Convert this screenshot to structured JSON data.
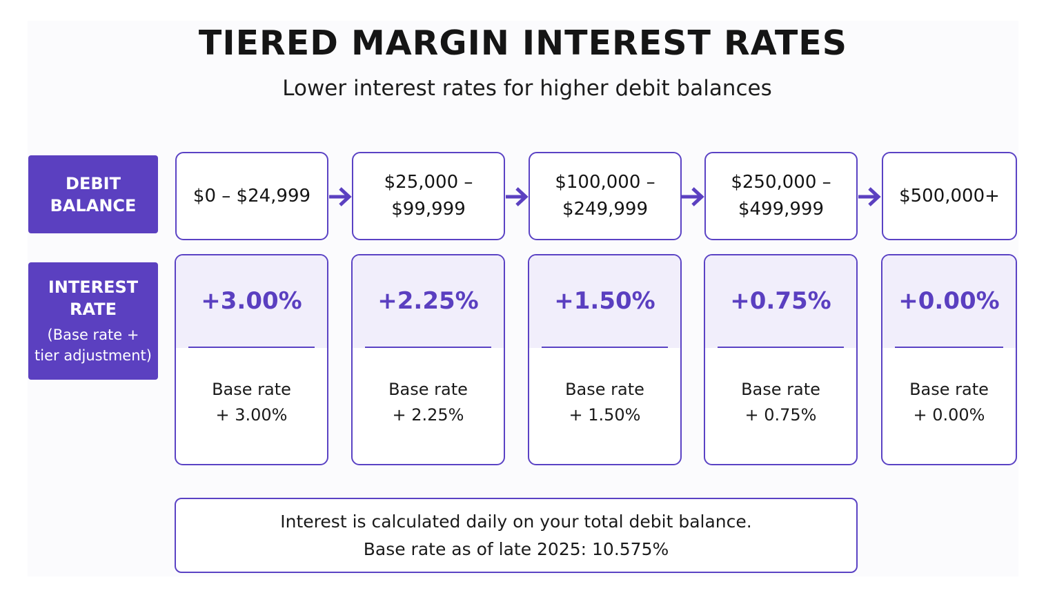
{
  "header": {
    "title": "TIERED MARGIN INTEREST RATES",
    "subtitle": "Lower interest rates for higher debit balances"
  },
  "row_labels": {
    "debit_line1": "DEBIT",
    "debit_line2": "BALANCE",
    "rate_line1": "INTEREST",
    "rate_line2": "RATE",
    "rate_sub_line1": "(Base rate +",
    "rate_sub_line2": "tier adjustment)"
  },
  "tiers": [
    {
      "balance_line1": "$0 – $24,999",
      "balance_line2": "",
      "rate": "+3.00%",
      "detail_line1": "Base rate",
      "detail_line2": "+ 3.00%"
    },
    {
      "balance_line1": "$25,000 –",
      "balance_line2": "$99,999",
      "rate": "+2.25%",
      "detail_line1": "Base rate",
      "detail_line2": "+ 2.25%"
    },
    {
      "balance_line1": "$100,000 –",
      "balance_line2": "$249,999",
      "rate": "+1.50%",
      "detail_line1": "Base rate",
      "detail_line2": "+ 1.50%"
    },
    {
      "balance_line1": "$250,000 –",
      "balance_line2": "$499,999",
      "rate": "+0.75%",
      "detail_line1": "Base rate",
      "detail_line2": "+ 0.75%"
    },
    {
      "balance_line1": "$500,000+",
      "balance_line2": "",
      "rate": "+0.00%",
      "detail_line1": "Base rate",
      "detail_line2": "+ 0.00%"
    }
  ],
  "note": {
    "line1": "Interest is calculated daily on your total debit balance.",
    "line2": "Base rate as of late 2025: 10.575%"
  },
  "colors": {
    "accent": "#5b40c0",
    "border": "#5a42c4",
    "rate_panel": "#f1eefb",
    "rate_text": "#5a3fc0"
  },
  "icons": {
    "connector": "arrow-right-icon"
  }
}
